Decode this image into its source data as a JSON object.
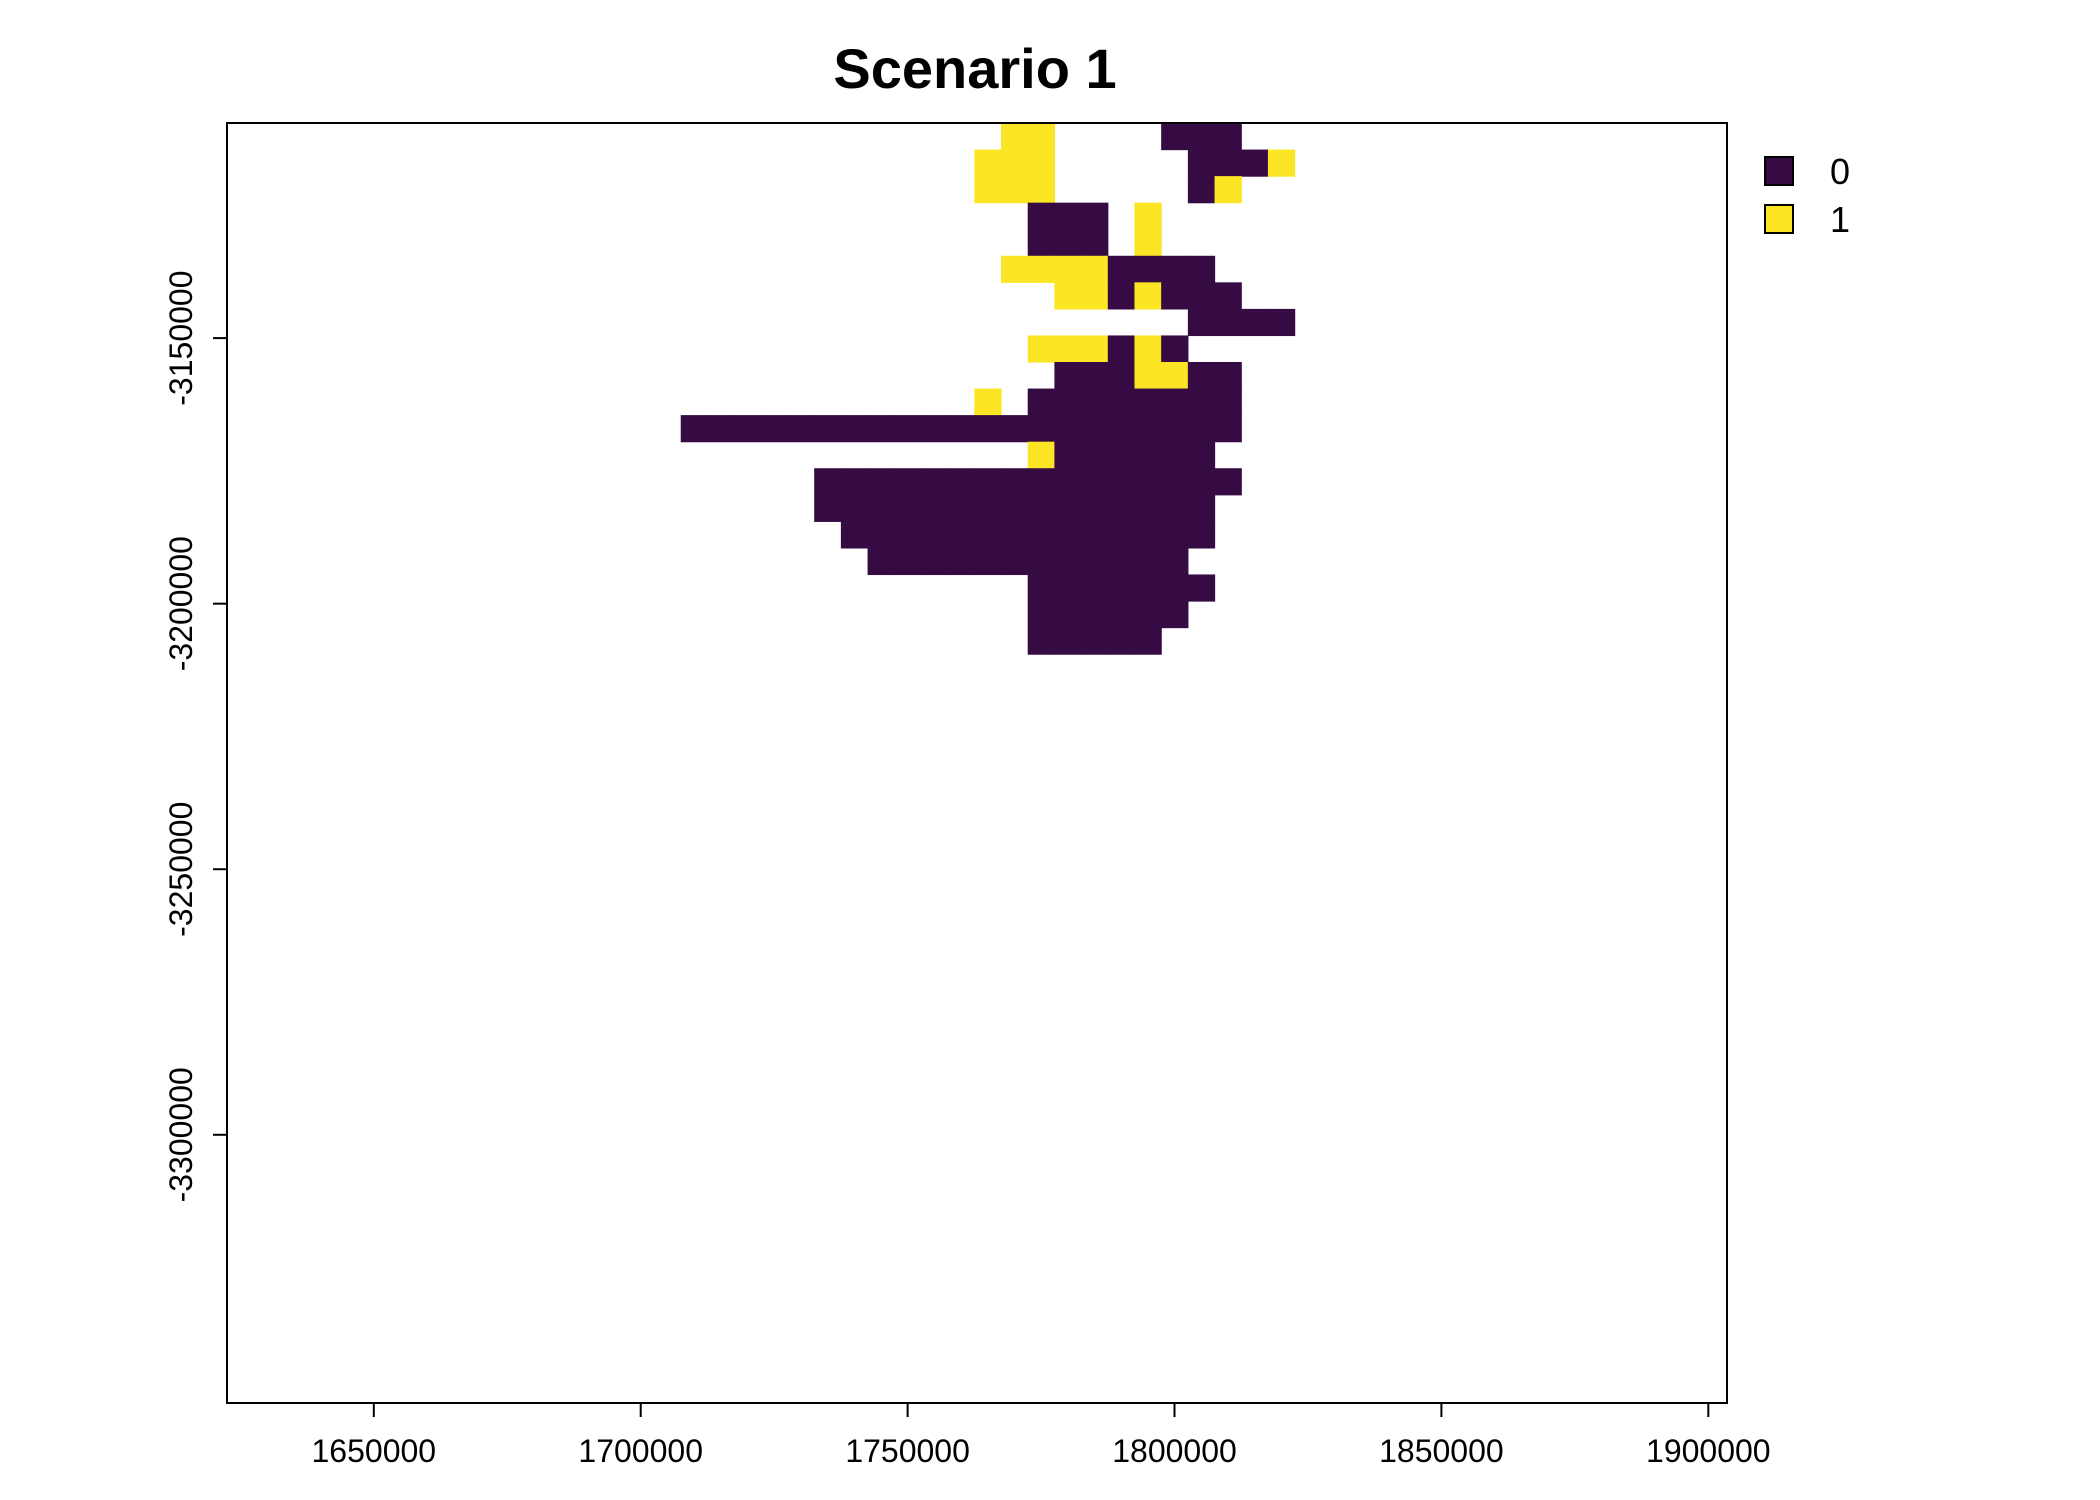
{
  "chart_data": {
    "type": "heatmap",
    "title": "Scenario 1",
    "xlabel": "",
    "ylabel": "",
    "xlim": [
      1622500,
      1903500
    ],
    "ylim": [
      -3350500,
      -3109500
    ],
    "x_ticks": [
      {
        "value": 1650000,
        "label": "1650000"
      },
      {
        "value": 1700000,
        "label": "1700000"
      },
      {
        "value": 1750000,
        "label": "1750000"
      },
      {
        "value": 1800000,
        "label": "1800000"
      },
      {
        "value": 1850000,
        "label": "1850000"
      },
      {
        "value": 1900000,
        "label": "1900000"
      }
    ],
    "y_ticks": [
      {
        "value": -3150000,
        "label": "-3150000"
      },
      {
        "value": -3200000,
        "label": "-3200000"
      },
      {
        "value": -3250000,
        "label": "-3250000"
      },
      {
        "value": -3300000,
        "label": "-3300000"
      }
    ],
    "legend": {
      "placement": "top-right, outside plot",
      "entries": [
        {
          "label": "0",
          "color": "#360b44"
        },
        {
          "label": "1",
          "color": "#fce524"
        }
      ]
    },
    "grid": false,
    "raster": {
      "cell_size": 5000,
      "x_origin": 1622500,
      "y_top": -3109500,
      "encoding": "one string per row, top to bottom; '.' = no data, '0' = value 0, '1' = value 1",
      "rows": [
        ".............................11....000....",
        "............................111.....0001..",
        "............................111.....01....",
        "..............................000.1......",
        "..............................000.1......",
        ".............................11110000.....",
        "...............................1101000...",
        "....................................0000.",
        "..............................111010.....",
        "...............................0001100...",
        "............................1.00000000...",
        ".................000000000000000000000...",
        "..............................1000000....",
        "......................0000000000000000...",
        "......................000000000000000....",
        ".......................00000000000000....",
        "........................000000000000.....",
        "..............................0000000....",
        "..............................000000.....",
        "..............................00000......"
      ]
    }
  }
}
